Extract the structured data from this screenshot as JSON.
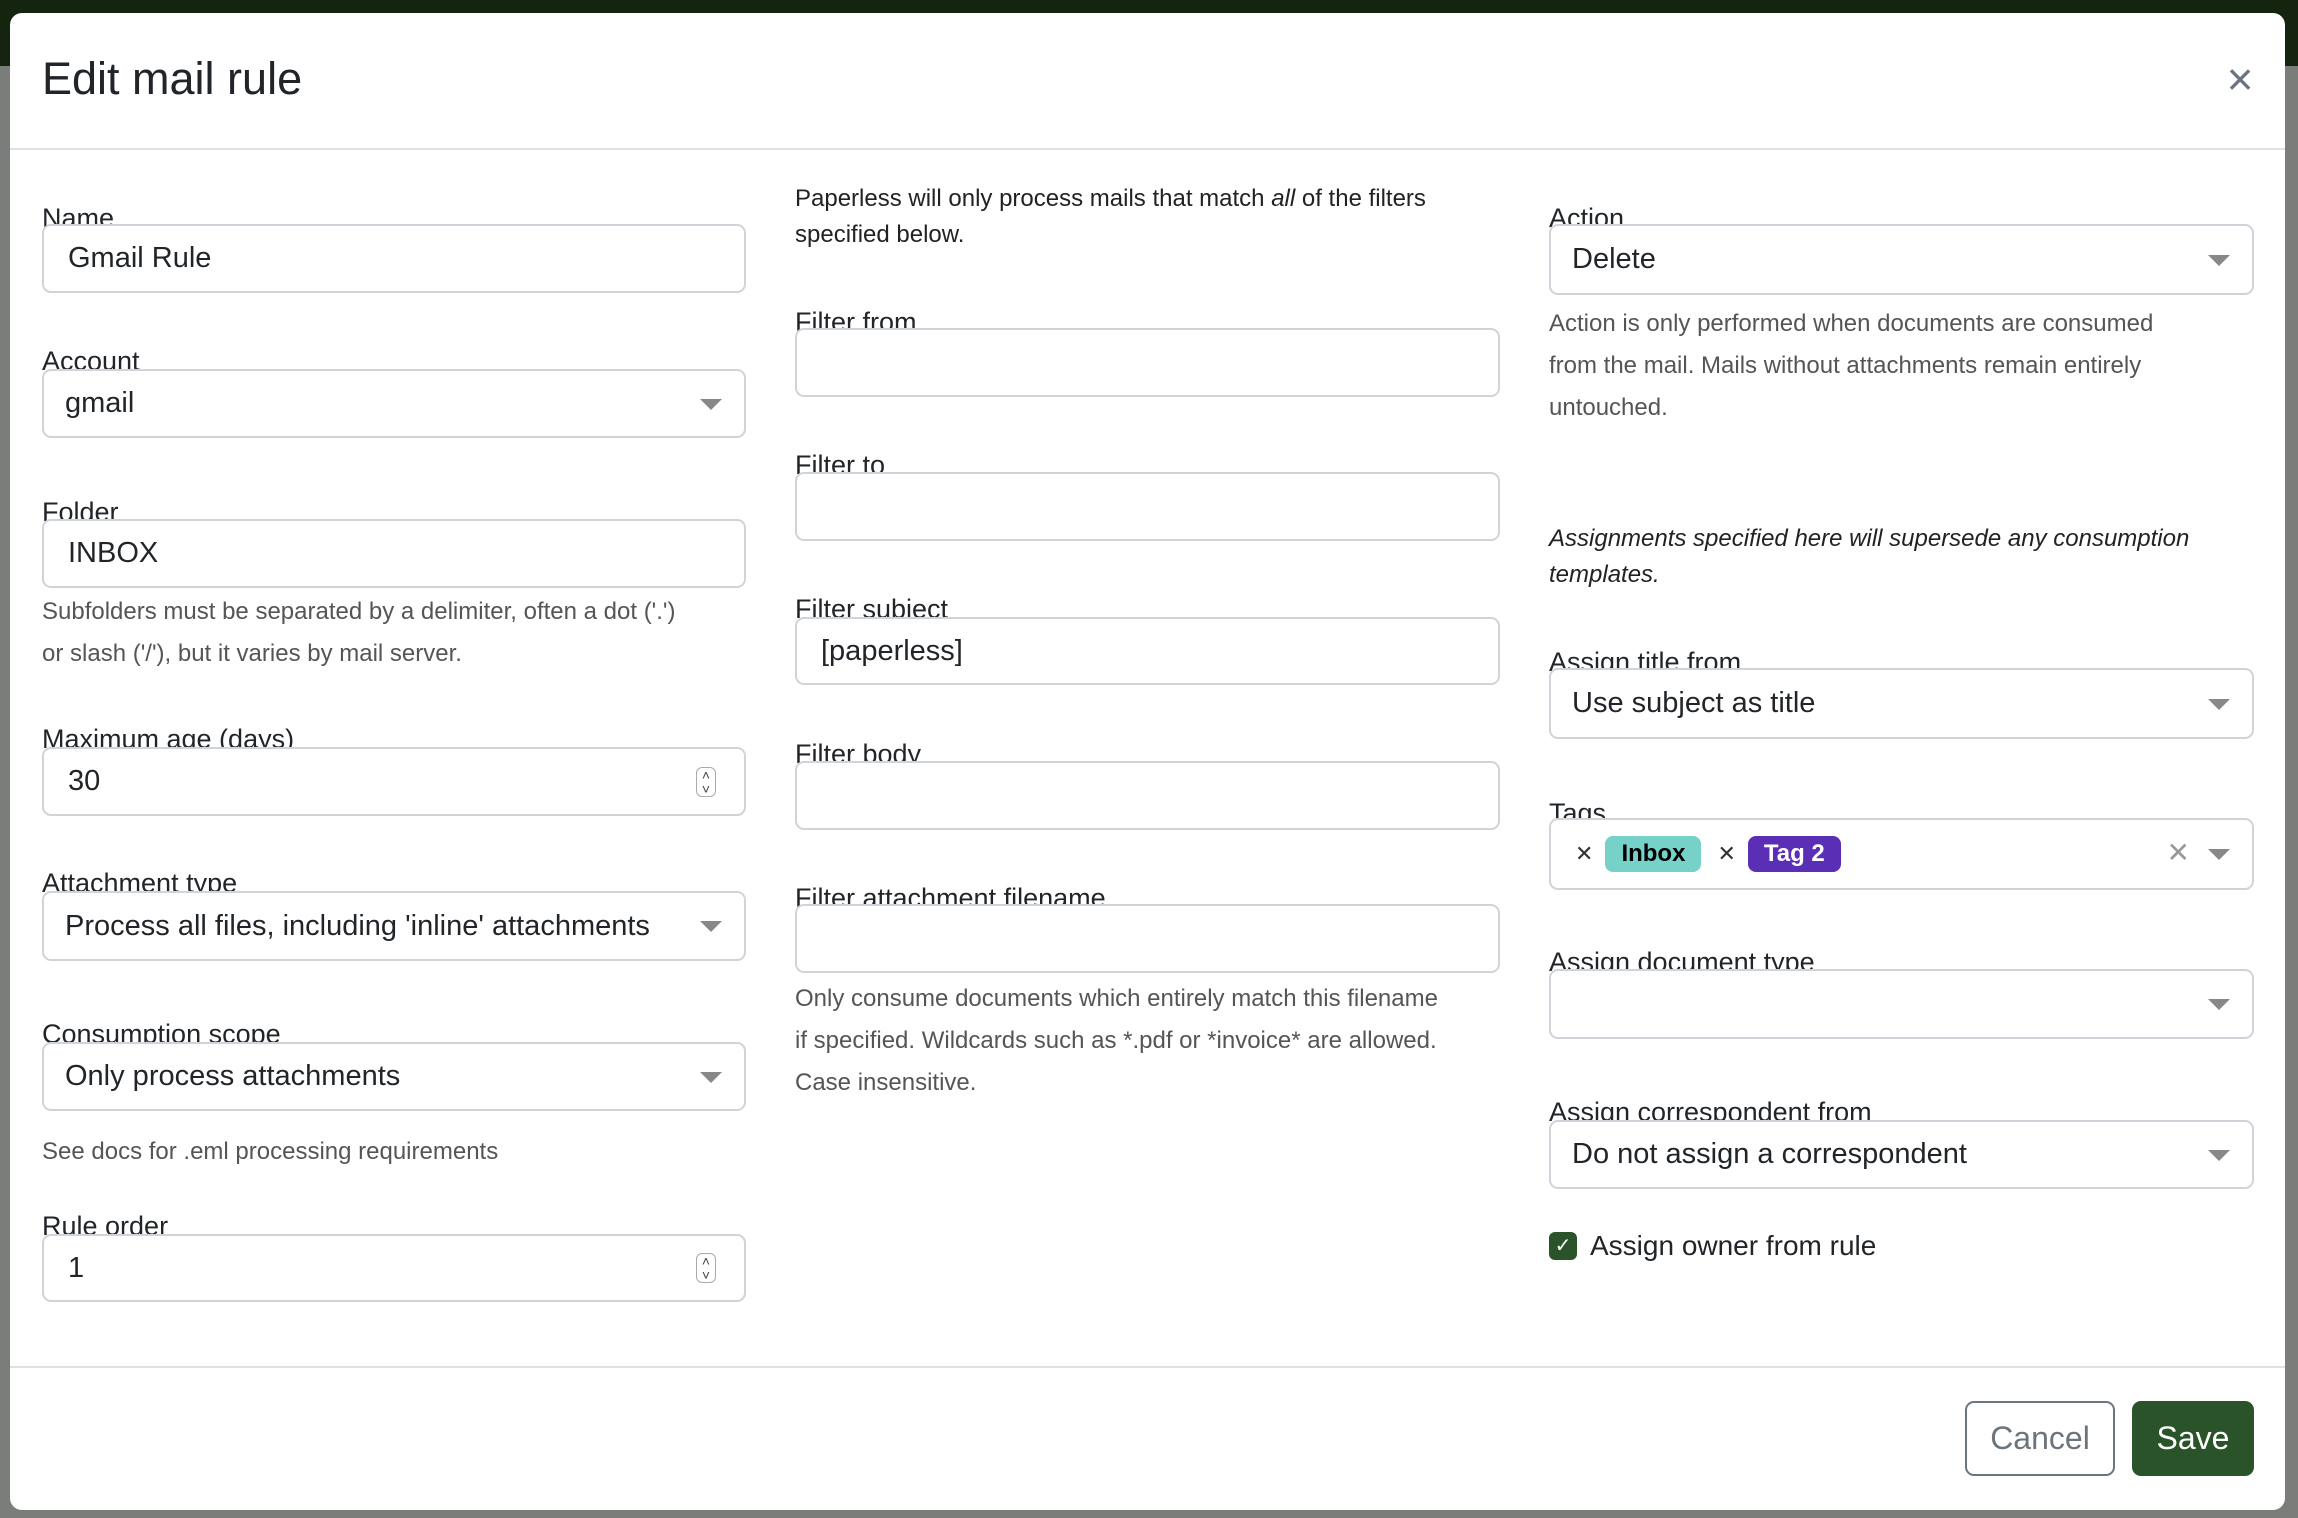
{
  "modal": {
    "title": "Edit mail rule"
  },
  "left": {
    "name_label": "Name",
    "name_value": "Gmail Rule",
    "account_label": "Account",
    "account_value": "gmail",
    "folder_label": "Folder",
    "folder_value": "INBOX",
    "folder_help_1": "Subfolders must be separated by a delimiter, often a dot ('.')",
    "folder_help_2": "or slash ('/'), but it varies by mail server.",
    "max_age_label": "Maximum age (days)",
    "max_age_value": "30",
    "attachment_label": "Attachment type",
    "attachment_value": "Process all files, including 'inline' attachments",
    "scope_label": "Consumption scope",
    "scope_value": "Only process attachments",
    "scope_help": "See docs for .eml processing requirements",
    "order_label": "Rule order",
    "order_value": "1"
  },
  "middle": {
    "intro_1a": "Paperless will only process mails that match ",
    "intro_1b": "all",
    "intro_1c": " of the filters",
    "intro_2": "specified below.",
    "from_label": "Filter from",
    "from_value": "",
    "to_label": "Filter to",
    "to_value": "",
    "subject_label": "Filter subject",
    "subject_value": "[paperless]",
    "body_label": "Filter body",
    "body_value": "",
    "filename_label": "Filter attachment filename",
    "filename_value": "",
    "filename_help_1": "Only consume documents which entirely match this filename",
    "filename_help_2": "if specified. Wildcards such as *.pdf or *invoice* are allowed.",
    "filename_help_3": "Case insensitive."
  },
  "right": {
    "action_label": "Action",
    "action_value": "Delete",
    "action_help_1": "Action is only performed when documents are consumed",
    "action_help_2": "from the mail. Mails without attachments remain entirely",
    "action_help_3": "untouched.",
    "assign_note_1": "Assignments specified here will supersede any consumption",
    "assign_note_2": "templates.",
    "title_label": "Assign title from",
    "title_value": "Use subject as title",
    "tags_label": "Tags",
    "tags": [
      {
        "label": "Inbox",
        "color": "#76d1c9"
      },
      {
        "label": "Tag 2",
        "color": "#5b2fb5"
      }
    ],
    "doctype_label": "Assign document type",
    "doctype_value": "",
    "corr_label": "Assign correspondent from",
    "corr_value": "Do not assign a correspondent",
    "owner_label": "Assign owner from rule",
    "owner_checked": true
  },
  "footer": {
    "cancel": "Cancel",
    "save": "Save"
  },
  "colors": {
    "primary": "#2b5329",
    "topbar": "#14240f"
  }
}
